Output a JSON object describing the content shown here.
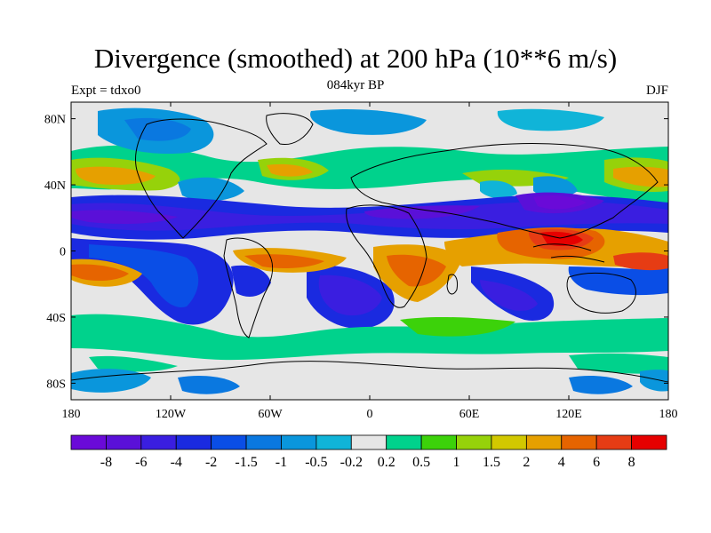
{
  "figure": {
    "title": "Divergence (smoothed) at 200 hPa (10**6 m/s)",
    "left_label": "Expt = tdxo0",
    "center_label": "084kyr BP",
    "right_label": "DJF"
  },
  "axes": {
    "x_ticks": [
      "180",
      "120W",
      "60W",
      "0",
      "60E",
      "120E",
      "180"
    ],
    "y_ticks": [
      "80N",
      "40N",
      "0",
      "40S",
      "80S"
    ]
  },
  "colorbar": {
    "labels": [
      "-8",
      "-6",
      "-4",
      "-2",
      "-1.5",
      "-1",
      "-0.5",
      "-0.2",
      "0.2",
      "0.5",
      "1",
      "1.5",
      "2",
      "4",
      "6",
      "8"
    ],
    "colors": [
      "#6a0ad8",
      "#5a10d8",
      "#3a1ee0",
      "#1a2ae0",
      "#0a4ee6",
      "#0a78e0",
      "#0a96dc",
      "#10b4d8",
      "#e6e6e6",
      "#00d28c",
      "#3cd20a",
      "#96d20a",
      "#d2c800",
      "#e6a000",
      "#e66400",
      "#e63c14",
      "#e60000"
    ]
  },
  "map_colors": {
    "land_outline": "#000000",
    "neutral": "#e6e6e6"
  }
}
